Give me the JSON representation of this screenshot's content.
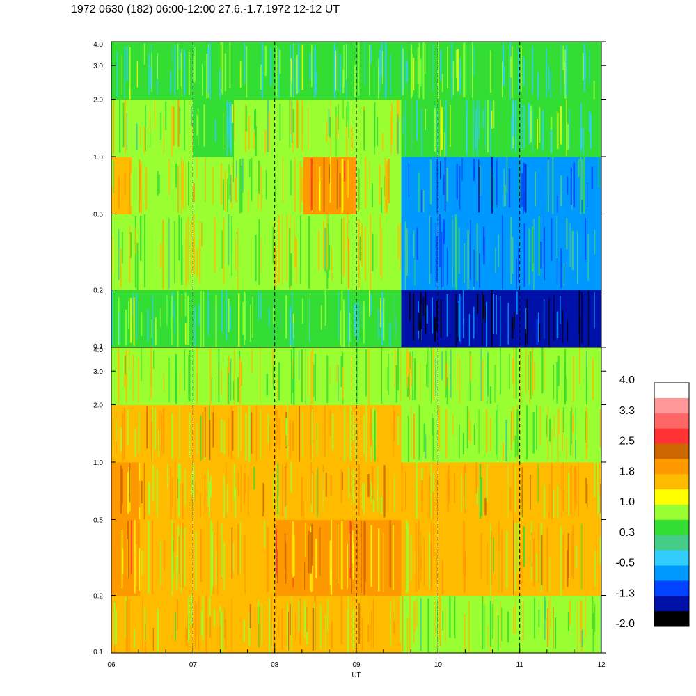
{
  "title": "1972 0630 (182) 06:00-12:00 27.6.-1.7.1972  12-12 UT",
  "chart_data": {
    "type": "heatmap",
    "panels": [
      {
        "id": "top",
        "y_scale": "log",
        "ylim": [
          0.1,
          4.0
        ],
        "yticks": [
          {
            "value": 4.0,
            "label": "4.0"
          },
          {
            "value": 3.0,
            "label": "3.0"
          },
          {
            "value": 2.0,
            "label": "2.0"
          },
          {
            "value": 1.0,
            "label": "1.0"
          },
          {
            "value": 0.5,
            "label": "0.5"
          },
          {
            "value": 0.2,
            "label": "0.2"
          },
          {
            "value": 0.1,
            "label": "0.1"
          }
        ],
        "segments": [
          {
            "x0": 6.0,
            "x1": 6.25,
            "bands": [
              [
                0.1,
                0.2,
                0.3
              ],
              [
                0.2,
                0.5,
                1.0
              ],
              [
                0.5,
                1.0,
                1.4
              ],
              [
                1.0,
                2.0,
                1.0
              ],
              [
                2.0,
                4.0,
                0.3
              ]
            ]
          },
          {
            "x0": 6.25,
            "x1": 6.5,
            "bands": [
              [
                0.1,
                0.2,
                0.3
              ],
              [
                0.2,
                0.5,
                1.0
              ],
              [
                0.5,
                1.0,
                1.0
              ],
              [
                1.0,
                2.0,
                1.0
              ],
              [
                2.0,
                4.0,
                0.3
              ]
            ]
          },
          {
            "x0": 6.5,
            "x1": 7.0,
            "bands": [
              [
                0.1,
                0.2,
                0.3
              ],
              [
                0.2,
                0.5,
                1.0
              ],
              [
                0.5,
                1.0,
                1.0
              ],
              [
                1.0,
                2.0,
                1.0
              ],
              [
                2.0,
                4.0,
                0.3
              ]
            ]
          },
          {
            "x0": 7.0,
            "x1": 7.5,
            "bands": [
              [
                0.1,
                0.2,
                0.3
              ],
              [
                0.2,
                0.5,
                1.0
              ],
              [
                0.5,
                1.0,
                1.0
              ],
              [
                1.0,
                2.0,
                0.3
              ],
              [
                2.0,
                4.0,
                0.3
              ]
            ]
          },
          {
            "x0": 7.5,
            "x1": 8.35,
            "bands": [
              [
                0.1,
                0.2,
                0.3
              ],
              [
                0.2,
                0.5,
                1.0
              ],
              [
                0.5,
                1.0,
                1.0
              ],
              [
                1.0,
                2.0,
                1.0
              ],
              [
                2.0,
                4.0,
                0.3
              ]
            ]
          },
          {
            "x0": 8.35,
            "x1": 9.0,
            "bands": [
              [
                0.1,
                0.2,
                0.3
              ],
              [
                0.2,
                0.5,
                1.0
              ],
              [
                0.5,
                1.0,
                1.8
              ],
              [
                1.0,
                2.0,
                1.0
              ],
              [
                2.0,
                4.0,
                0.3
              ]
            ]
          },
          {
            "x0": 9.0,
            "x1": 9.55,
            "bands": [
              [
                0.1,
                0.2,
                0.3
              ],
              [
                0.2,
                0.5,
                1.0
              ],
              [
                0.5,
                1.0,
                1.0
              ],
              [
                1.0,
                2.0,
                1.0
              ],
              [
                2.0,
                4.0,
                0.3
              ]
            ]
          },
          {
            "x0": 9.55,
            "x1": 12.0,
            "bands": [
              [
                0.1,
                0.2,
                -1.3
              ],
              [
                0.2,
                0.5,
                -0.5
              ],
              [
                0.5,
                1.0,
                -0.5
              ],
              [
                1.0,
                2.0,
                0.3
              ],
              [
                2.0,
                4.0,
                0.3
              ]
            ]
          }
        ]
      },
      {
        "id": "bottom",
        "y_scale": "log",
        "ylim": [
          0.1,
          4.0
        ],
        "yticks": [
          {
            "value": 4.0,
            "label": "4.0"
          },
          {
            "value": 3.0,
            "label": "3.0"
          },
          {
            "value": 2.0,
            "label": "2.0"
          },
          {
            "value": 1.0,
            "label": "1.0"
          },
          {
            "value": 0.5,
            "label": "0.5"
          },
          {
            "value": 0.2,
            "label": "0.2"
          },
          {
            "value": 0.1,
            "label": "0.1"
          }
        ],
        "segments": [
          {
            "x0": 6.0,
            "x1": 6.35,
            "bands": [
              [
                0.1,
                0.2,
                1.4
              ],
              [
                0.2,
                0.5,
                1.8
              ],
              [
                0.5,
                1.0,
                1.8
              ],
              [
                1.0,
                2.0,
                1.4
              ],
              [
                2.0,
                4.0,
                1.0
              ]
            ]
          },
          {
            "x0": 6.35,
            "x1": 8.0,
            "bands": [
              [
                0.1,
                0.2,
                1.4
              ],
              [
                0.2,
                0.5,
                1.4
              ],
              [
                0.5,
                1.0,
                1.4
              ],
              [
                1.0,
                2.0,
                1.4
              ],
              [
                2.0,
                4.0,
                1.0
              ]
            ]
          },
          {
            "x0": 8.0,
            "x1": 9.55,
            "bands": [
              [
                0.1,
                0.2,
                1.4
              ],
              [
                0.2,
                0.5,
                1.8
              ],
              [
                0.5,
                1.0,
                1.4
              ],
              [
                1.0,
                2.0,
                1.4
              ],
              [
                2.0,
                4.0,
                1.0
              ]
            ]
          },
          {
            "x0": 9.55,
            "x1": 12.0,
            "bands": [
              [
                0.1,
                0.2,
                1.0
              ],
              [
                0.2,
                0.5,
                1.4
              ],
              [
                0.5,
                1.0,
                1.4
              ],
              [
                1.0,
                2.0,
                1.0
              ],
              [
                2.0,
                4.0,
                1.0
              ]
            ]
          }
        ]
      }
    ],
    "x_axis": {
      "label": "UT",
      "xlim": [
        6,
        12
      ],
      "ticks": [
        {
          "value": 6,
          "label": "06"
        },
        {
          "value": 7,
          "label": "07"
        },
        {
          "value": 8,
          "label": "08"
        },
        {
          "value": 9,
          "label": "09"
        },
        {
          "value": 10,
          "label": "10"
        },
        {
          "value": 11,
          "label": "11"
        },
        {
          "value": 12,
          "label": "12"
        }
      ],
      "dashed_gridlines": [
        7,
        8,
        9,
        10,
        11
      ]
    },
    "colorbar": {
      "labels": [
        "4.0",
        "3.3",
        "2.5",
        "1.8",
        "1.0",
        "0.3",
        "-0.5",
        "-1.3",
        "-2.0"
      ],
      "colors_top_to_bottom": [
        "#ffffff",
        "#ff9999",
        "#ff6666",
        "#ff3333",
        "#cc6600",
        "#ff9900",
        "#ffbb00",
        "#ffff00",
        "#99ff33",
        "#33dd33",
        "#44cc88",
        "#33ccff",
        "#0099ff",
        "#0044ff",
        "#0011aa",
        "#000000"
      ]
    }
  }
}
